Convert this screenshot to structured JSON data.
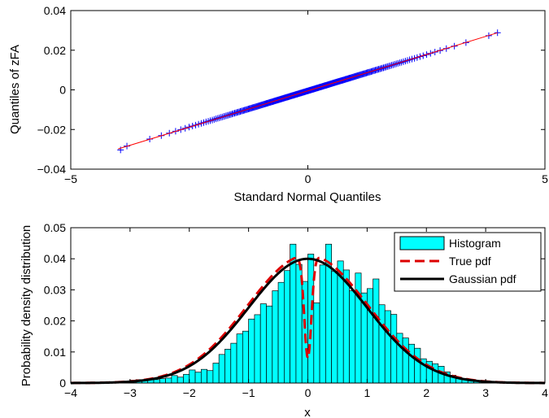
{
  "chart_data": [
    {
      "type": "scatter",
      "subtype": "qq-plot",
      "xlabel": "Standard Normal Quantiles",
      "ylabel": "Quantiles of zFA",
      "xlim": [
        -5,
        5
      ],
      "ylim": [
        -0.04,
        0.04
      ],
      "xticks": [
        "−5",
        "0",
        "5"
      ],
      "yticks": [
        "−0.04",
        "−0.02",
        "0",
        "0.02",
        "0.04"
      ],
      "grid": false,
      "marker": "+",
      "marker_color": "#0000ff",
      "reference_line": {
        "x": [
          -4.0,
          4.0
        ],
        "y": [
          -0.0298,
          0.0288
        ],
        "color": "#ff0000"
      },
      "points": {
        "x_range": [
          -3.95,
          4.0
        ],
        "y_range": [
          -0.0303,
          0.0288
        ],
        "slope": 0.0073,
        "intercept": -0.0005
      }
    },
    {
      "type": "bar",
      "subtype": "histogram-with-pdfs",
      "xlabel": "x",
      "ylabel": "Probability density distribution",
      "xlim": [
        -4,
        4
      ],
      "ylim": [
        0,
        0.05
      ],
      "xticks": [
        "−4",
        "−3",
        "−2",
        "−1",
        "0",
        "1",
        "2",
        "3",
        "4"
      ],
      "yticks": [
        "0",
        "0.01",
        "0.02",
        "0.03",
        "0.04",
        "0.05"
      ],
      "grid": false,
      "legend_position": "top-right",
      "bin_start": -4,
      "bin_width": 0.1,
      "histogram": {
        "name": "Histogram",
        "color": "#00ffff",
        "values": [
          0,
          0,
          0,
          0,
          0,
          0,
          0,
          0,
          0.0003,
          0.0003,
          0.0009,
          0.0011,
          0.0011,
          0.0014,
          0.0011,
          0.0014,
          0.0016,
          0.0024,
          0.0019,
          0.0028,
          0.0042,
          0.0035,
          0.0044,
          0.004,
          0.0064,
          0.0092,
          0.0109,
          0.0128,
          0.0158,
          0.0167,
          0.0206,
          0.022,
          0.0255,
          0.0248,
          0.0297,
          0.0324,
          0.0362,
          0.0447,
          0.0382,
          0.0327,
          0.0415,
          0.0258,
          0.038,
          0.0447,
          0.036,
          0.0393,
          0.0364,
          0.0297,
          0.0354,
          0.029,
          0.0304,
          0.0335,
          0.0252,
          0.0233,
          0.0221,
          0.016,
          0.0145,
          0.0125,
          0.0112,
          0.0078,
          0.007,
          0.0062,
          0.0054,
          0.0036,
          0.0025,
          0.0018,
          0.0015,
          0.001,
          0.0008,
          0.0005,
          0.0004,
          0.0003,
          0.0002,
          0.0001,
          0,
          0,
          0,
          0,
          0,
          0
        ]
      },
      "series": [
        {
          "name": "True pdf",
          "color": "#dd0000",
          "style": "dashed",
          "dip_at": 0,
          "dip_min": 0.008,
          "peak": 0.0412
        },
        {
          "name": "Gaussian pdf",
          "color": "#000000",
          "style": "solid",
          "mean": 0,
          "std": 1,
          "peak_scale": 0.04
        }
      ]
    }
  ]
}
